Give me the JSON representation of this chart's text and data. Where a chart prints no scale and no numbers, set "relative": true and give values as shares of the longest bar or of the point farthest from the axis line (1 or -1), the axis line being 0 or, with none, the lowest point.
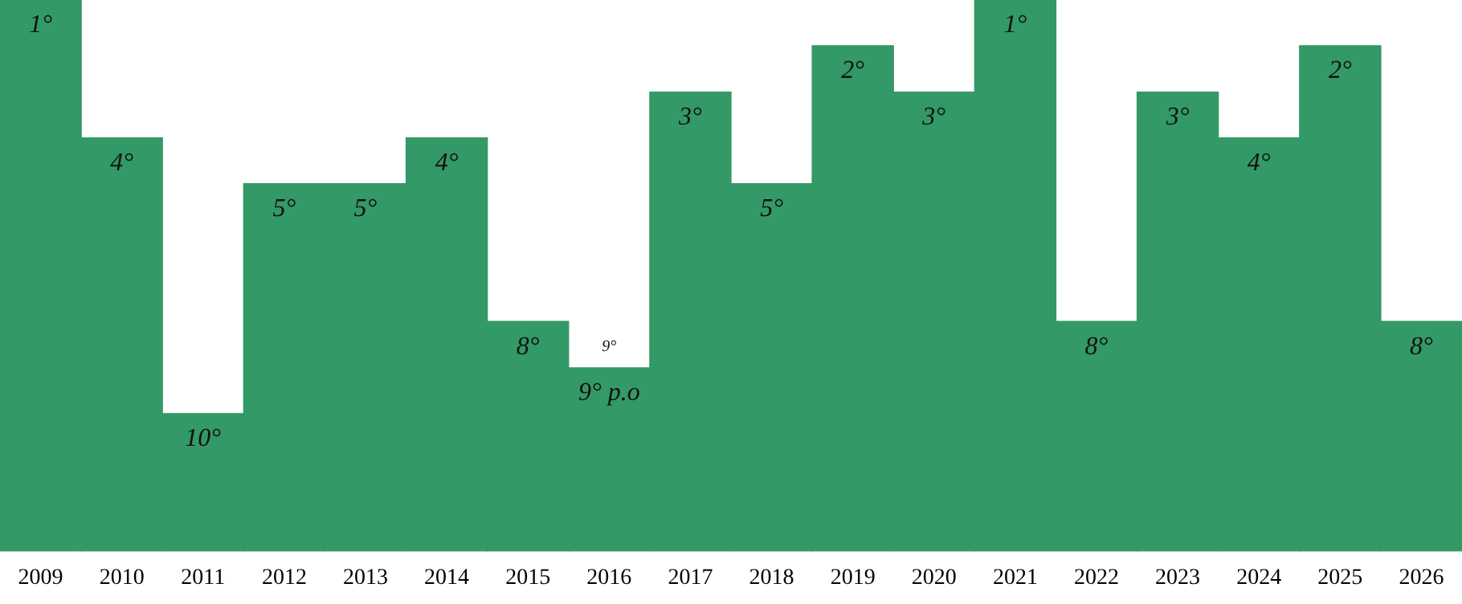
{
  "chart_data": {
    "type": "bar",
    "relative": true,
    "color": "#339966",
    "categories": [
      "2009",
      "2010",
      "2011",
      "2012",
      "2013",
      "2014",
      "2015",
      "2016",
      "2017",
      "2018",
      "2019",
      "2020",
      "2021",
      "2022",
      "2023",
      "2024",
      "2025",
      "2026"
    ],
    "values": [
      1,
      0.75,
      0.25,
      0.667,
      0.667,
      0.75,
      0.417,
      0.333,
      0.833,
      0.667,
      0.917,
      0.833,
      1,
      0.417,
      0.833,
      0.75,
      0.917,
      0.417
    ],
    "annotations": [
      {
        "text": "1°",
        "x": "2009",
        "y": 1
      },
      {
        "text": "4°",
        "x": "2010",
        "y": 0.75
      },
      {
        "text": "10°",
        "x": "2011",
        "y": 0.25
      },
      {
        "text": "5°",
        "x": "2012",
        "y": 0.667
      },
      {
        "text": "5°",
        "x": "2013",
        "y": 0.667
      },
      {
        "text": "4°",
        "x": "2014",
        "y": 0.75
      },
      {
        "text": "8°",
        "x": "2015",
        "y": 0.417
      },
      {
        "text": "9° p.o",
        "x": "2016",
        "y": 0.333
      },
      {
        "text": "9°",
        "x": "2016",
        "y": 0.333
      },
      {
        "text": "3°",
        "x": "2017",
        "y": 0.833
      },
      {
        "text": "5°",
        "x": "2018",
        "y": 0.667
      },
      {
        "text": "2°",
        "x": "2019",
        "y": 0.917
      },
      {
        "text": "3°",
        "x": "2020",
        "y": 0.833
      },
      {
        "text": "1°",
        "x": "2021",
        "y": 1
      },
      {
        "text": "8°",
        "x": "2022",
        "y": 0.417
      },
      {
        "text": "3°",
        "x": "2023",
        "y": 0.833
      },
      {
        "text": "4°",
        "x": "2024",
        "y": 0.75
      },
      {
        "text": "2°",
        "x": "2025",
        "y": 0.917
      },
      {
        "text": "8°",
        "x": "2026",
        "y": 0.417
      }
    ],
    "tick_labels": "x",
    "grid": false,
    "legend": false
  }
}
